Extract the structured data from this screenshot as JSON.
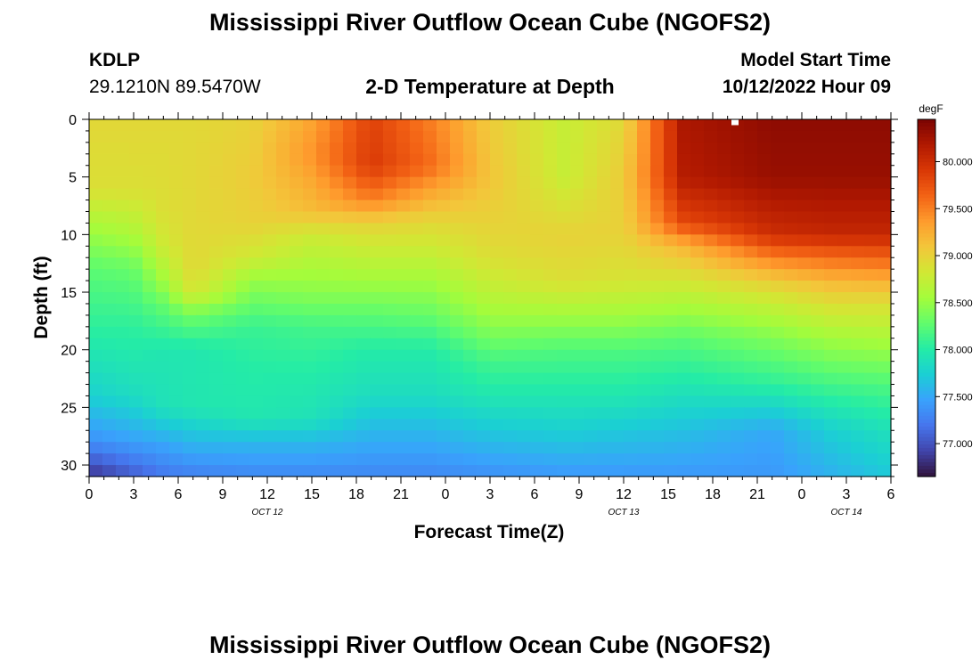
{
  "header": {
    "title": "Mississippi River Outflow Ocean Cube (NGOFS2)",
    "station_id": "KDLP",
    "station_coords": "29.1210N  89.5470W",
    "subtitle": "2-D Temperature at Depth",
    "model_start_label": "Model Start Time",
    "model_start_value": "10/12/2022 Hour 09"
  },
  "footer": {
    "title": "Mississippi River Outflow Ocean Cube (NGOFS2)"
  },
  "chart_data": {
    "type": "heatmap",
    "title": "2-D Temperature at Depth",
    "xlabel": "Forecast Time(Z)",
    "ylabel": "Depth (ft)",
    "x_range_hours": [
      0,
      54
    ],
    "x_tick_hours": [
      0,
      3,
      6,
      9,
      12,
      15,
      18,
      21,
      24,
      27,
      30,
      33,
      36,
      39,
      42,
      45,
      48,
      51,
      54
    ],
    "x_tick_labels": [
      "0",
      "3",
      "6",
      "9",
      "12",
      "15",
      "18",
      "21",
      "0",
      "3",
      "6",
      "9",
      "12",
      "15",
      "18",
      "21",
      "0",
      "3",
      "6"
    ],
    "date_labels": [
      {
        "hour": 12,
        "text": "OCT 12"
      },
      {
        "hour": 36,
        "text": "OCT 13"
      },
      {
        "hour": 51,
        "text": "OCT 14"
      }
    ],
    "y_range": [
      0,
      31
    ],
    "y_ticks": [
      0,
      5,
      10,
      15,
      20,
      25,
      30
    ],
    "y_tick_labels": [
      "0",
      "5",
      "10",
      "15",
      "20",
      "25",
      "30"
    ],
    "y_inverted": true,
    "colorbar": {
      "unit": "degF",
      "min": 76.65,
      "max": 80.45,
      "ticks": [
        77.0,
        77.5,
        78.0,
        78.5,
        79.0,
        79.5,
        80.0
      ],
      "tick_labels": [
        "77.000",
        "77.500",
        "78.000",
        "78.500",
        "79.000",
        "79.500",
        "80.000"
      ],
      "colormap": [
        "#30123b",
        "#4145ab",
        "#4675ed",
        "#39a2fc",
        "#1bcfd4",
        "#24eca6",
        "#61fc6c",
        "#a4fc3b",
        "#d1e834",
        "#f3c63a",
        "#fe9b2d",
        "#f36315",
        "#d93806",
        "#b11901",
        "#7a0402"
      ]
    },
    "marker": {
      "hour": 43.5,
      "depth": 0.3
    },
    "profiles": [
      {
        "hour": 0,
        "depth": [
          0,
          6,
          8,
          10,
          13,
          18,
          24,
          28,
          31
        ],
        "temp": [
          78.95,
          78.9,
          78.7,
          78.5,
          78.25,
          78.05,
          77.75,
          77.35,
          76.8
        ]
      },
      {
        "hour": 3,
        "depth": [
          0,
          6,
          8,
          10,
          13,
          18,
          24,
          28,
          31
        ],
        "temp": [
          78.95,
          78.9,
          78.75,
          78.6,
          78.3,
          78.05,
          77.85,
          77.45,
          77.05
        ]
      },
      {
        "hour": 5,
        "depth": [
          0,
          8,
          11,
          14,
          16,
          20,
          25,
          28,
          31
        ],
        "temp": [
          78.95,
          78.9,
          78.8,
          78.55,
          78.3,
          77.95,
          77.9,
          77.5,
          77.2
        ]
      },
      {
        "hour": 7,
        "depth": [
          0,
          10,
          13,
          15,
          17,
          20,
          25,
          28,
          31
        ],
        "temp": [
          78.95,
          78.95,
          78.95,
          78.85,
          78.35,
          77.95,
          77.95,
          77.6,
          77.25
        ]
      },
      {
        "hour": 11,
        "depth": [
          0,
          5,
          9,
          12,
          14,
          16,
          18,
          22,
          26,
          28,
          31
        ],
        "temp": [
          79.0,
          79.05,
          79.0,
          78.8,
          78.5,
          78.3,
          78.1,
          78.0,
          77.95,
          77.6,
          77.3
        ]
      },
      {
        "hour": 15,
        "depth": [
          0,
          3,
          8,
          10,
          12,
          15,
          18,
          22,
          26,
          28,
          31
        ],
        "temp": [
          79.3,
          79.4,
          79.15,
          78.8,
          78.65,
          78.45,
          78.15,
          78.0,
          77.9,
          77.6,
          77.3
        ]
      },
      {
        "hour": 19,
        "depth": [
          0,
          4,
          7,
          9,
          11,
          14,
          17,
          20,
          24,
          27,
          31
        ],
        "temp": [
          79.85,
          79.9,
          79.5,
          79.0,
          78.8,
          78.55,
          78.25,
          78.0,
          77.85,
          77.6,
          77.3
        ]
      },
      {
        "hour": 23,
        "depth": [
          0,
          4,
          7,
          9,
          11,
          14,
          17,
          20,
          24,
          27,
          31
        ],
        "temp": [
          79.5,
          79.6,
          79.2,
          78.95,
          78.8,
          78.55,
          78.3,
          78.0,
          77.85,
          77.6,
          77.3
        ]
      },
      {
        "hour": 27,
        "depth": [
          0,
          5,
          9,
          12,
          15,
          18,
          21,
          24,
          27,
          31
        ],
        "temp": [
          79.05,
          79.1,
          79.0,
          78.9,
          78.7,
          78.45,
          78.15,
          77.95,
          77.7,
          77.35
        ]
      },
      {
        "hour": 32,
        "depth": [
          0,
          5,
          10,
          14,
          17,
          20,
          24,
          27,
          31
        ],
        "temp": [
          78.75,
          78.75,
          79.0,
          78.9,
          78.55,
          78.2,
          77.95,
          77.75,
          77.4
        ]
      },
      {
        "hour": 36,
        "depth": [
          0,
          5,
          10,
          14,
          17,
          20,
          24,
          27,
          31
        ],
        "temp": [
          78.95,
          79.05,
          79.0,
          78.85,
          78.55,
          78.2,
          77.95,
          77.7,
          77.4
        ]
      },
      {
        "hour": 40,
        "depth": [
          0,
          5,
          9,
          11,
          13,
          16,
          19,
          23,
          27,
          31
        ],
        "temp": [
          80.2,
          80.15,
          79.8,
          79.2,
          78.95,
          78.6,
          78.25,
          77.95,
          77.65,
          77.4
        ]
      },
      {
        "hour": 46,
        "depth": [
          0,
          5,
          10,
          12,
          14,
          16,
          19,
          23,
          27,
          31
        ],
        "temp": [
          80.35,
          80.3,
          80.0,
          79.5,
          79.05,
          78.75,
          78.4,
          78.05,
          77.5,
          77.4
        ]
      },
      {
        "hour": 50,
        "depth": [
          0,
          5,
          10,
          12,
          14,
          16,
          19,
          23,
          27,
          31
        ],
        "temp": [
          80.35,
          80.3,
          80.05,
          79.6,
          79.2,
          78.9,
          78.55,
          78.15,
          77.75,
          77.55
        ]
      },
      {
        "hour": 54,
        "depth": [
          0,
          5,
          10,
          12,
          14,
          16,
          19,
          23,
          27,
          31
        ],
        "temp": [
          80.35,
          80.3,
          80.05,
          79.65,
          79.25,
          78.9,
          78.6,
          78.2,
          77.9,
          77.7
        ]
      }
    ]
  }
}
